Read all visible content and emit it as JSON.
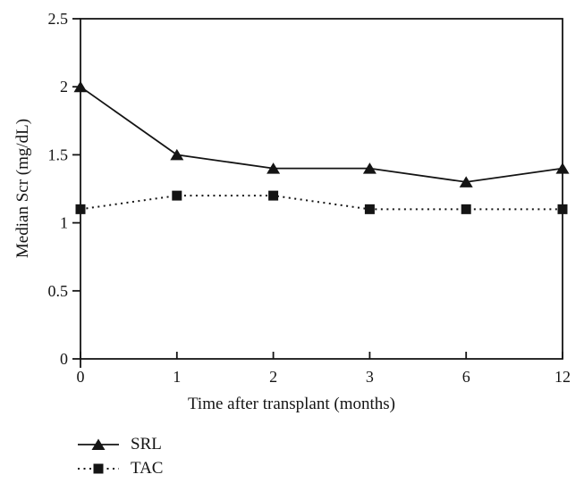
{
  "figure": {
    "background": "#ffffff",
    "ink_color": "#141414"
  },
  "chart_data": {
    "type": "line",
    "categories": [
      "0",
      "1",
      "2",
      "3",
      "6",
      "12"
    ],
    "series": [
      {
        "name": "SRL",
        "marker": "triangle",
        "line_style": "solid",
        "values": [
          2.0,
          1.5,
          1.4,
          1.4,
          1.3,
          1.4
        ]
      },
      {
        "name": "TAC",
        "marker": "square",
        "line_style": "dotted",
        "values": [
          1.1,
          1.2,
          1.2,
          1.1,
          1.1,
          1.1
        ]
      }
    ],
    "xlabel": "Time after transplant (months)",
    "ylabel": "Median Scr (mg/dL)",
    "ylim": [
      0,
      2.5
    ],
    "yticks": [
      0,
      0.5,
      1,
      1.5,
      2,
      2.5
    ],
    "grid": false,
    "legend_position": "bottom-left"
  }
}
